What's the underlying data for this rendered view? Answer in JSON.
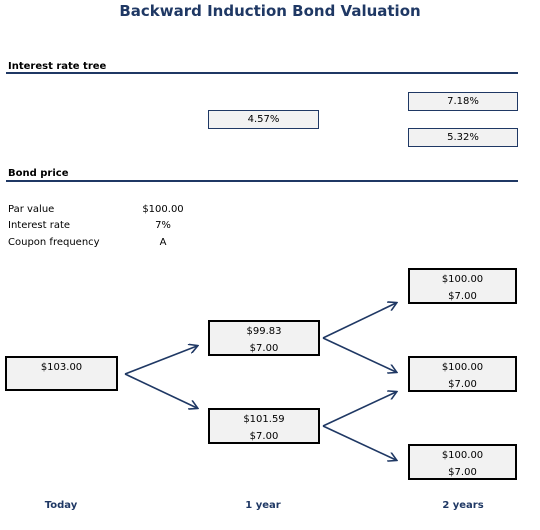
{
  "title": "Backward Induction Bond Valuation",
  "interest_tree": {
    "label": "Interest rate tree",
    "year1": "4.57%",
    "year2_up": "7.18%",
    "year2_down": "5.32%"
  },
  "bond_price": {
    "label": "Bond price",
    "params": [
      {
        "label": "Par value",
        "value": "$100.00"
      },
      {
        "label": "Interest rate",
        "value": "7%"
      },
      {
        "label": "Coupon frequency",
        "value": "A"
      }
    ],
    "nodes": {
      "today": {
        "price": "$103.00"
      },
      "y1_up": {
        "price": "$99.83",
        "coupon": "$7.00"
      },
      "y1_down": {
        "price": "$101.59",
        "coupon": "$7.00"
      },
      "y2_top": {
        "price": "$100.00",
        "coupon": "$7.00"
      },
      "y2_mid": {
        "price": "$100.00",
        "coupon": "$7.00"
      },
      "y2_bot": {
        "price": "$100.00",
        "coupon": "$7.00"
      }
    }
  },
  "timeline": {
    "today": "Today",
    "year1": "1 year",
    "year2": "2 years"
  },
  "colors": {
    "accent": "#1f3864",
    "box_fill": "#f2f2f2"
  }
}
